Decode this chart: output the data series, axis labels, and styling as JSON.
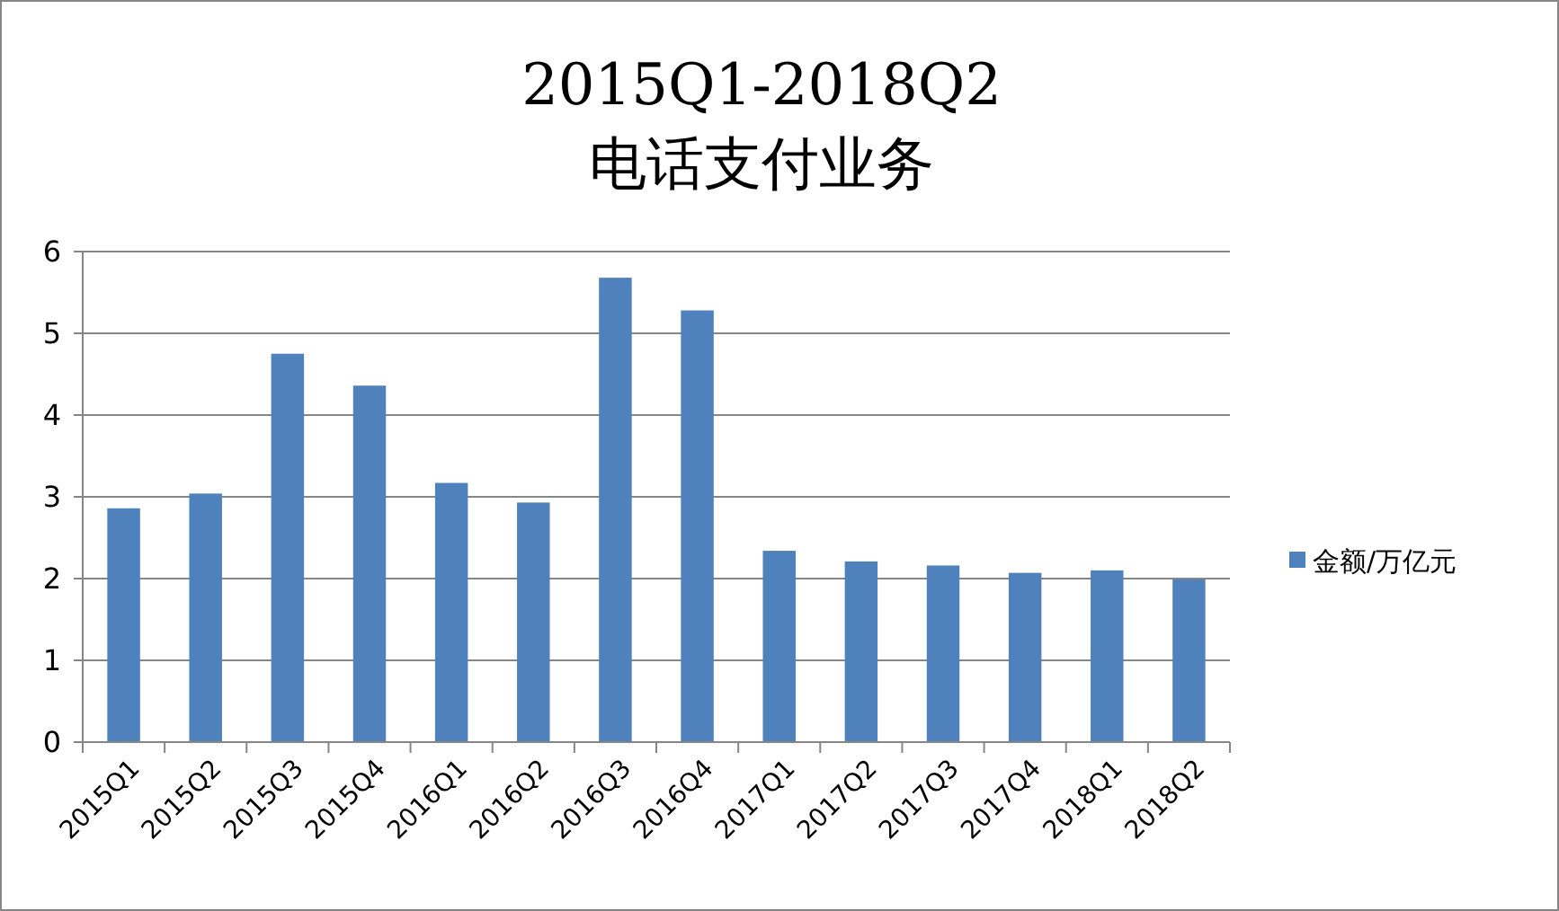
{
  "chart_data": {
    "type": "bar",
    "title": "2015Q1-2018Q2\n电话支付业务",
    "categories": [
      "2015Q1",
      "2015Q2",
      "2015Q3",
      "2015Q4",
      "2016Q1",
      "2016Q2",
      "2016Q3",
      "2016Q4",
      "2017Q1",
      "2017Q2",
      "2017Q3",
      "2017Q4",
      "2018Q1",
      "2018Q2"
    ],
    "series": [
      {
        "name": "金额/万亿元",
        "color": "#4f81bd",
        "values": [
          2.86,
          3.04,
          4.75,
          4.36,
          3.17,
          2.93,
          5.68,
          5.28,
          2.34,
          2.21,
          2.16,
          2.07,
          2.1,
          1.99
        ]
      }
    ],
    "ylim": [
      0,
      6
    ],
    "yticks": [
      0,
      1,
      2,
      3,
      4,
      5,
      6
    ],
    "grid": "y",
    "legend": "right"
  }
}
